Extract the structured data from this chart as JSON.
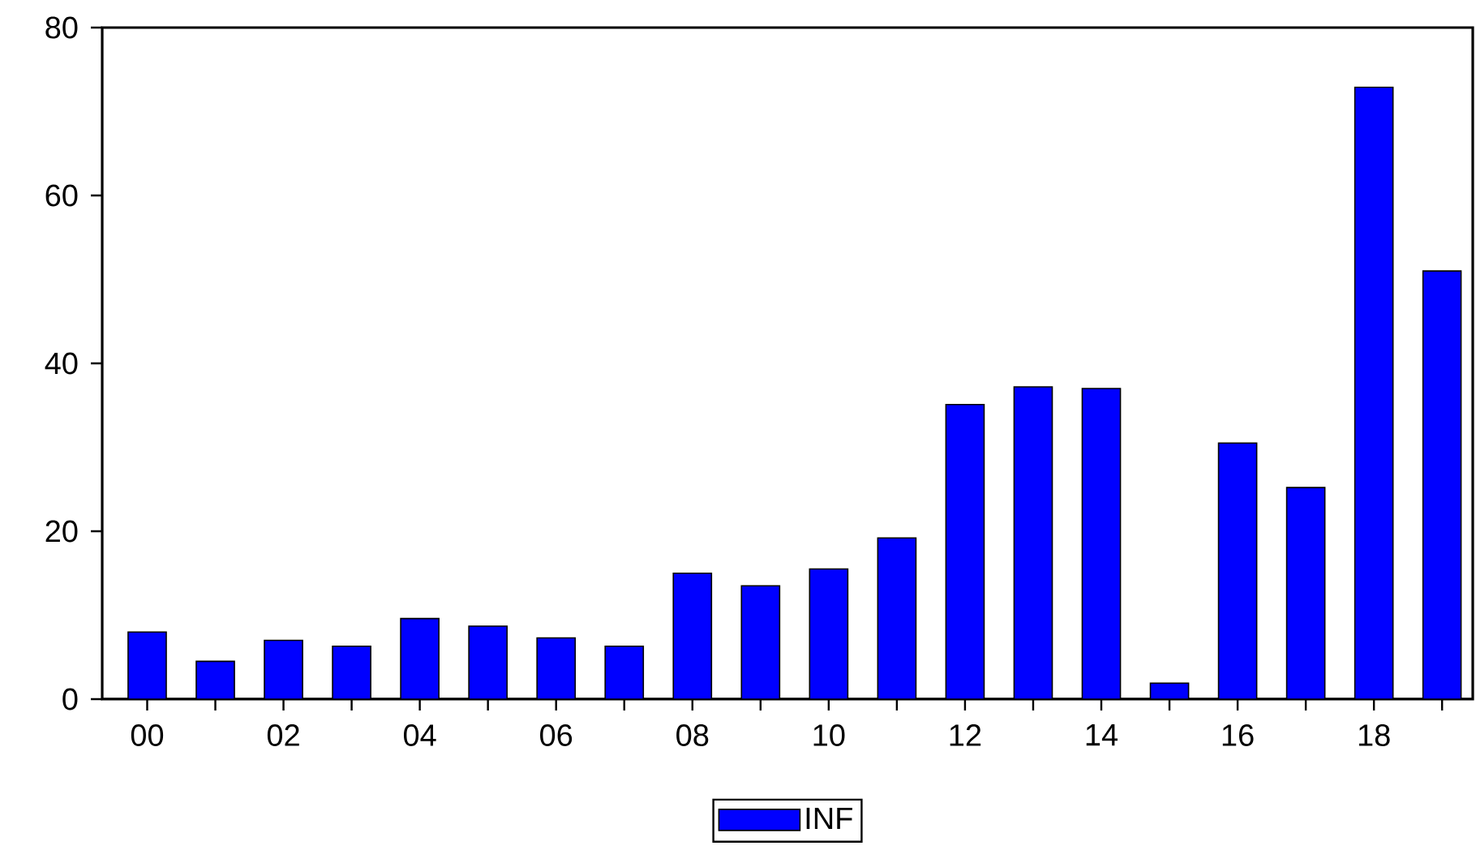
{
  "chart_data": {
    "type": "bar",
    "categories": [
      "00",
      null,
      "02",
      null,
      "04",
      null,
      "06",
      null,
      "08",
      null,
      "10",
      null,
      "12",
      null,
      "14",
      null,
      "16",
      null,
      "18",
      null
    ],
    "series": [
      {
        "name": "INF",
        "color": "#0000ff",
        "values": [
          8.0,
          4.5,
          7.0,
          6.3,
          9.6,
          8.7,
          7.3,
          6.3,
          15.0,
          13.5,
          15.5,
          19.2,
          35.1,
          37.2,
          37.0,
          1.9,
          30.5,
          25.2,
          72.9,
          51.0
        ]
      }
    ],
    "ylim": [
      0,
      80
    ],
    "yticks": [
      0,
      20,
      40,
      60,
      80
    ],
    "grid": false,
    "legend": "bottom"
  }
}
